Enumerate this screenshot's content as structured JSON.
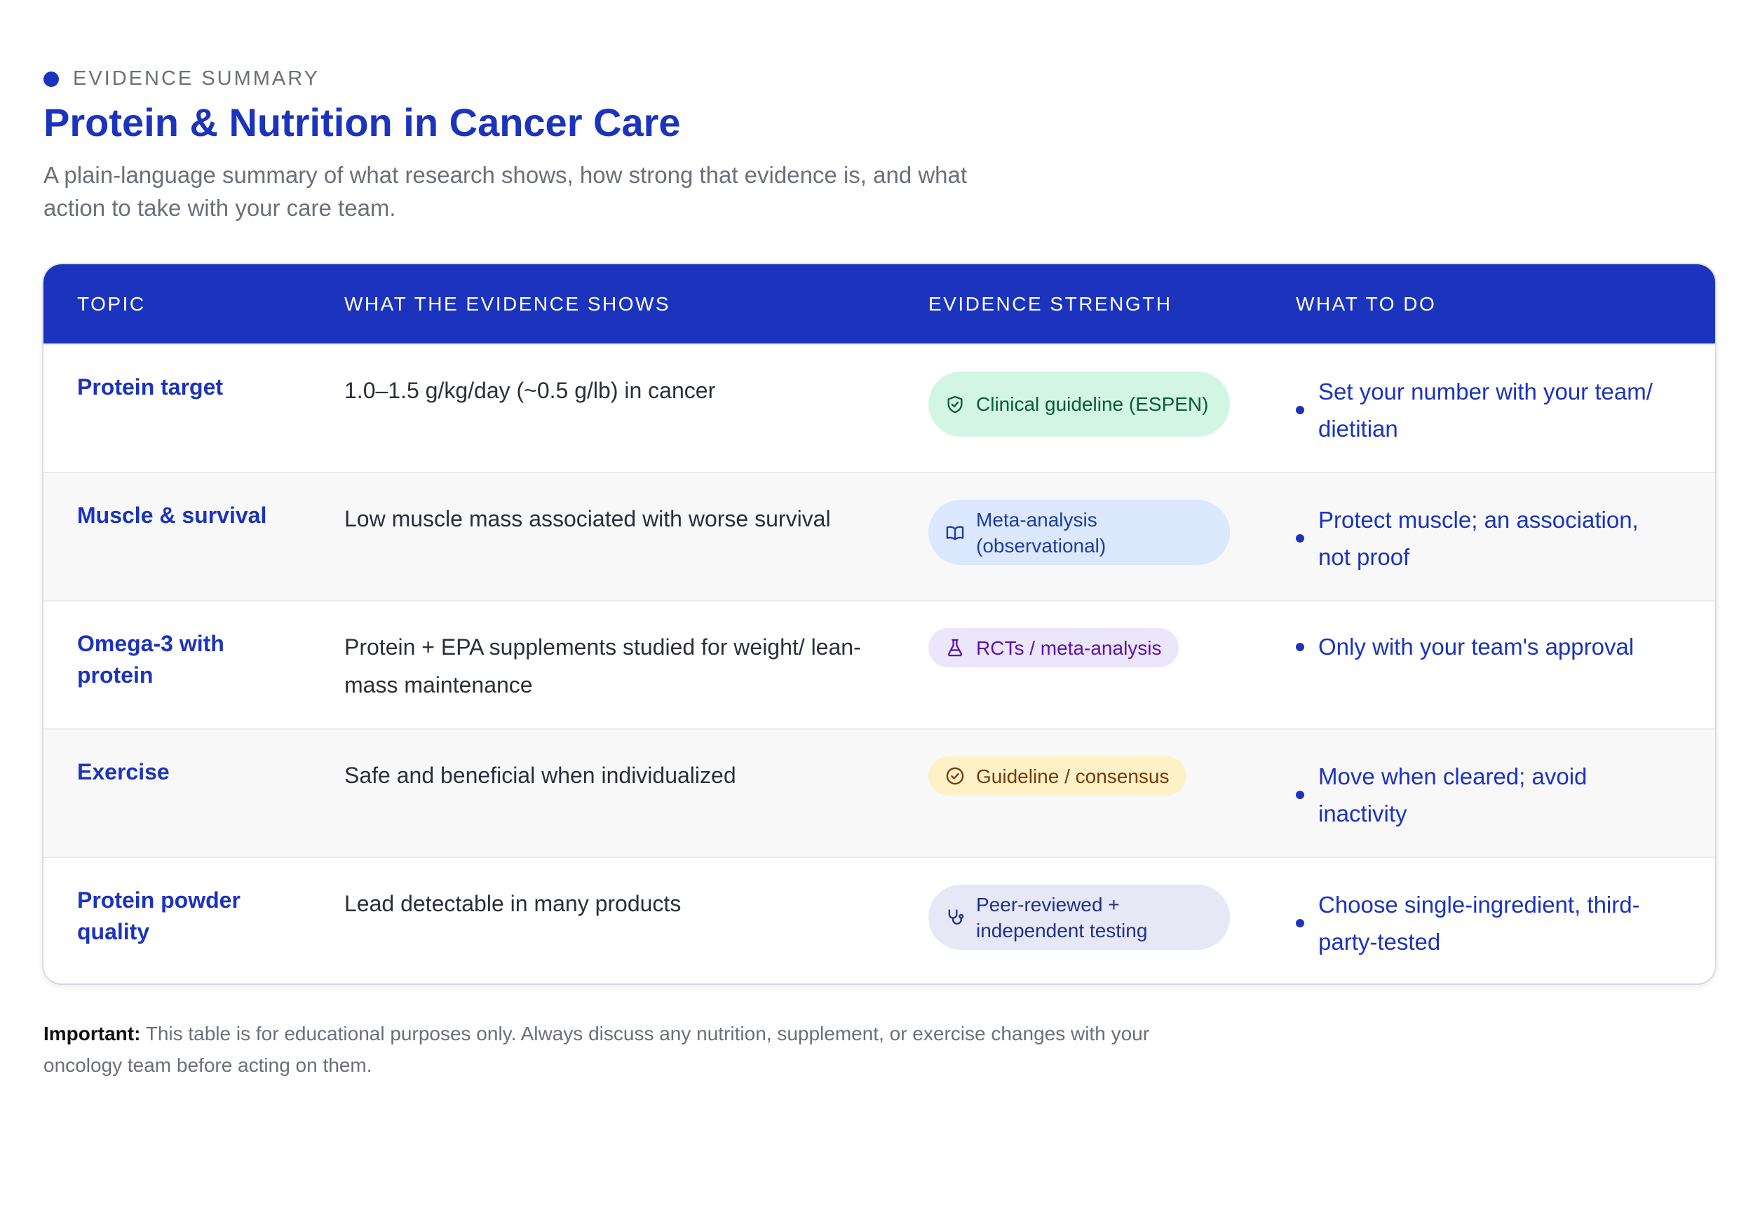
{
  "header": {
    "eyebrow": "EVIDENCE SUMMARY",
    "title": "Protein & Nutrition in Cancer Care",
    "subtitle": "A plain-language summary of what research shows, how strong that evidence is, and what action to take with your care team."
  },
  "table": {
    "columns": [
      "TOPIC",
      "WHAT THE EVIDENCE SHOWS",
      "EVIDENCE STRENGTH",
      "WHAT TO DO"
    ],
    "rows": [
      {
        "topic": "Protein target",
        "finding": "1.0–1.5 g/kg/day (~0.5 g/lb) in cancer",
        "strength": "Clinical guideline (ESPEN)",
        "strength_icon": "shield-icon",
        "strength_color": "#d2f6e3",
        "action": "Set your number with your team/ dietitian"
      },
      {
        "topic": "Muscle & survival",
        "finding": "Low muscle mass associated with worse survival",
        "strength": "Meta-analysis (observational)",
        "strength_icon": "book-icon",
        "strength_color": "#dbe8fd",
        "action": "Protect muscle; an association, not proof"
      },
      {
        "topic": "Omega-3 with protein",
        "finding": "Protein + EPA supplements studied for weight/ lean-mass maintenance",
        "strength": "RCTs / meta-analysis",
        "strength_icon": "flask-icon",
        "strength_color": "#ece6fb",
        "action": "Only with your team's approval"
      },
      {
        "topic": "Exercise",
        "finding": "Safe and beneficial when individualized",
        "strength": "Guideline / consensus",
        "strength_icon": "check-circle-icon",
        "strength_color": "#fdf1c8",
        "action": "Move when cleared; avoid inactivity"
      },
      {
        "topic": "Protein powder quality",
        "finding": "Lead detectable in many products",
        "strength": "Peer-reviewed + independent testing",
        "strength_icon": "stethoscope-icon",
        "strength_color": "#e6e8f6",
        "action": "Choose single-ingredient, third-party-tested"
      }
    ]
  },
  "footer": {
    "label": "Important:",
    "text": " This table is for educational purposes only. Always discuss any nutrition, supplement, or exercise changes with your oncology team before acting on them."
  },
  "colors": {
    "accent": "#1b33bd",
    "muted_text": "#6b6f7b"
  }
}
